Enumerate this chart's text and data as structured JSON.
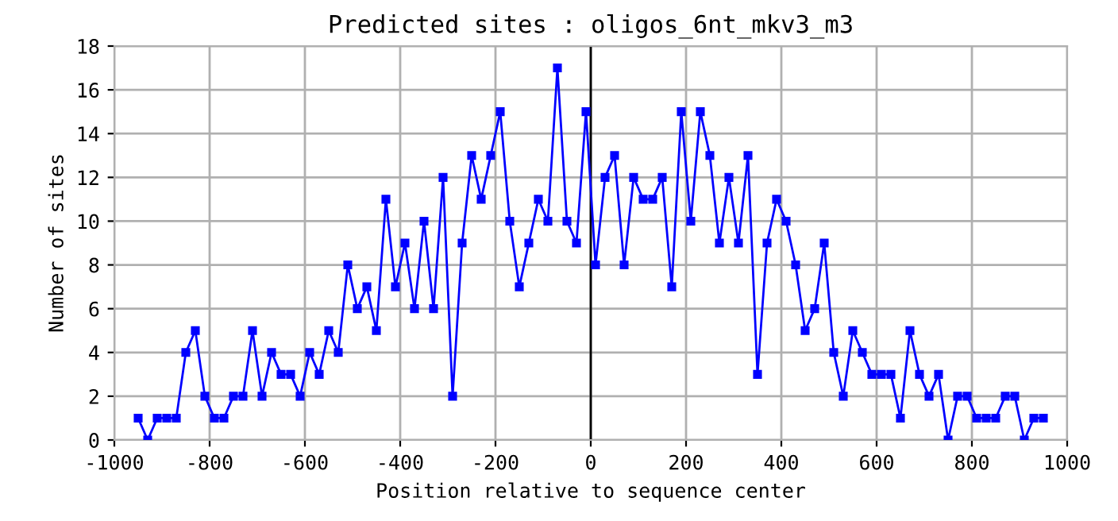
{
  "chart_data": {
    "type": "line",
    "title": "Predicted sites : oligos_6nt_mkv3_m3",
    "xlabel": "Position relative to sequence center",
    "ylabel": "Number of sites",
    "x": [
      -950,
      -930,
      -910,
      -890,
      -870,
      -850,
      -830,
      -810,
      -790,
      -770,
      -750,
      -730,
      -710,
      -690,
      -670,
      -650,
      -630,
      -610,
      -590,
      -570,
      -550,
      -530,
      -510,
      -490,
      -470,
      -450,
      -430,
      -410,
      -390,
      -370,
      -350,
      -330,
      -310,
      -290,
      -270,
      -250,
      -230,
      -210,
      -190,
      -170,
      -150,
      -130,
      -110,
      -90,
      -70,
      -50,
      -30,
      -10,
      10,
      30,
      50,
      70,
      90,
      110,
      130,
      150,
      170,
      190,
      210,
      230,
      250,
      270,
      290,
      310,
      330,
      350,
      370,
      390,
      410,
      430,
      450,
      470,
      490,
      510,
      530,
      550,
      570,
      590,
      610,
      630,
      650,
      670,
      690,
      710,
      730,
      750,
      770,
      790,
      810,
      830,
      850,
      870,
      890,
      910,
      930,
      950
    ],
    "series": [
      {
        "color": "#0000ff",
        "values": [
          1,
          0,
          1,
          1,
          1,
          4,
          5,
          2,
          1,
          1,
          2,
          2,
          5,
          2,
          4,
          3,
          3,
          2,
          4,
          3,
          5,
          4,
          8,
          6,
          7,
          5,
          11,
          7,
          9,
          6,
          10,
          6,
          12,
          2,
          9,
          13,
          11,
          13,
          15,
          10,
          7,
          9,
          11,
          10,
          17,
          10,
          9,
          15,
          8,
          12,
          13,
          8,
          12,
          11,
          11,
          12,
          7,
          15,
          10,
          15,
          13,
          9,
          12,
          9,
          13,
          3,
          9,
          11,
          10,
          8,
          5,
          6,
          9,
          4,
          2,
          5,
          4,
          3,
          3,
          3,
          1,
          5,
          3,
          2,
          3,
          0,
          2,
          2,
          1,
          1,
          1,
          2,
          2,
          0,
          1,
          1
        ]
      }
    ],
    "xlim": [
      -1000,
      1000
    ],
    "xticks": [
      -1000,
      -800,
      -600,
      -400,
      -200,
      0,
      200,
      400,
      600,
      800,
      1000
    ],
    "ylim": [
      0,
      18
    ],
    "yticks": [
      0,
      2,
      4,
      6,
      8,
      10,
      12,
      14,
      16,
      18
    ],
    "ref_lines": [
      {
        "axis": "x",
        "value": 0,
        "color": "#000000"
      }
    ],
    "grid": true,
    "marker": "square",
    "line_style": "solid",
    "legend": false
  }
}
